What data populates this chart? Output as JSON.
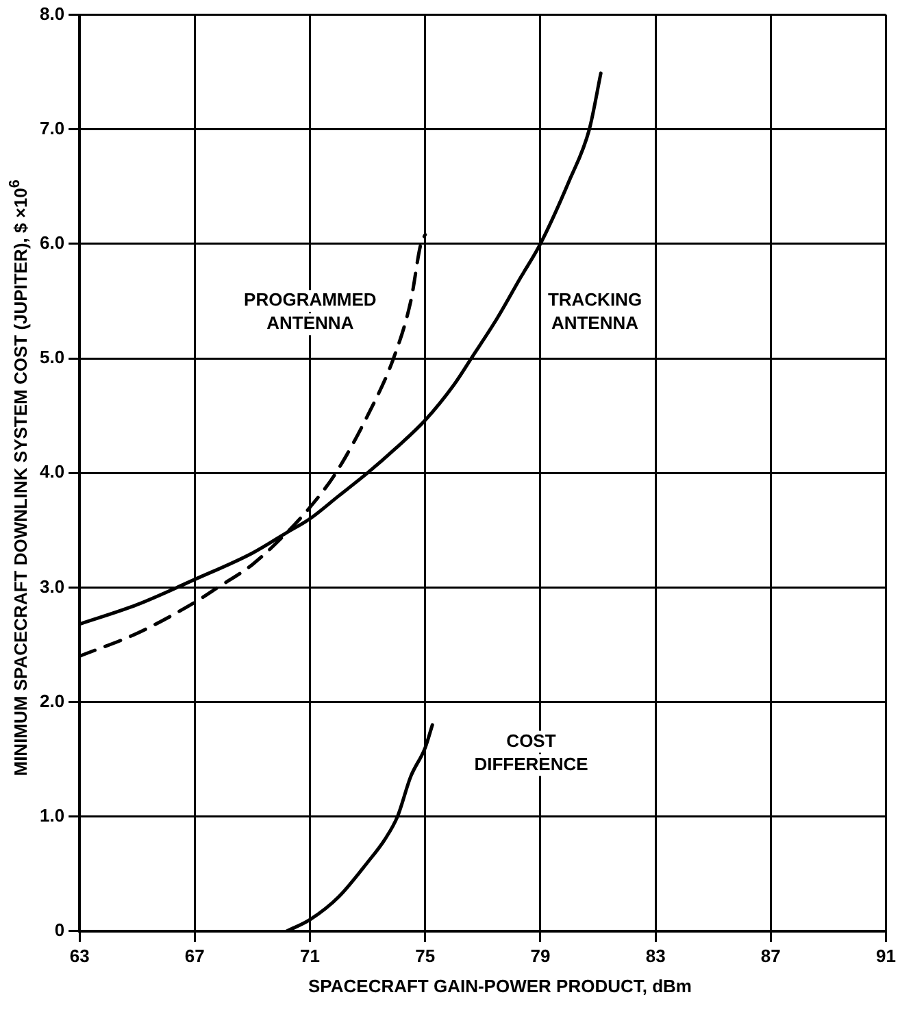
{
  "chart_data": {
    "type": "line",
    "xlabel": "SPACECRAFT GAIN-POWER PRODUCT, dBm",
    "ylabel": "MINIMUM SPACECRAFT DOWNLINK SYSTEM COST (JUPITER), $ ×10$^{6}$",
    "xlim": [
      63,
      91
    ],
    "xticks": [
      63,
      67,
      71,
      75,
      79,
      83,
      87,
      91
    ],
    "ylim": [
      0,
      8
    ],
    "yticks": [
      0,
      {
        "value": 1,
        "label": "1.0"
      },
      {
        "value": 2,
        "label": "2.0"
      },
      {
        "value": 3,
        "label": "3.0"
      },
      {
        "value": 4,
        "label": "4.0"
      },
      {
        "value": 5,
        "label": "5.0"
      },
      {
        "value": 6,
        "label": "6.0"
      },
      {
        "value": 7,
        "label": "7.0"
      },
      {
        "value": 8,
        "label": "8.0"
      }
    ],
    "grid": true,
    "legend": false,
    "marker": "none",
    "series": [
      {
        "color": "#000000",
        "line_style": "solid",
        "x": [
          63,
          65,
          67,
          69,
          70.2,
          71,
          72,
          73,
          74,
          75,
          76,
          76.6,
          77.5,
          78.3,
          79,
          80,
          80.7,
          81.1
        ],
        "values": [
          2.68,
          2.85,
          3.07,
          3.3,
          3.48,
          3.6,
          3.8,
          4.0,
          4.22,
          4.46,
          4.77,
          5.0,
          5.35,
          5.7,
          6.0,
          6.55,
          7.0,
          7.49
        ]
      },
      {
        "color": "#000000",
        "line_style": "dashed",
        "x": [
          63,
          65,
          67,
          67.8,
          69,
          70.2,
          71,
          71.9,
          73,
          73.9,
          74.5,
          74.85,
          75
        ],
        "values": [
          2.4,
          2.6,
          2.87,
          3.0,
          3.2,
          3.48,
          3.7,
          4.0,
          4.5,
          5.0,
          5.5,
          6.0,
          6.08
        ]
      },
      {
        "color": "#000000",
        "line_style": "solid",
        "x": [
          70.2,
          71,
          72,
          73,
          73.6,
          74.04,
          74.5,
          75,
          75.25
        ],
        "values": [
          0,
          0.1,
          0.3,
          0.6,
          0.8,
          1.0,
          1.35,
          1.6,
          1.8
        ]
      }
    ],
    "annotations": [
      "PROGRAMMED\nANTENNA",
      "TRACKING\nANTENNA",
      "COST\nDIFFERENCE"
    ]
  }
}
